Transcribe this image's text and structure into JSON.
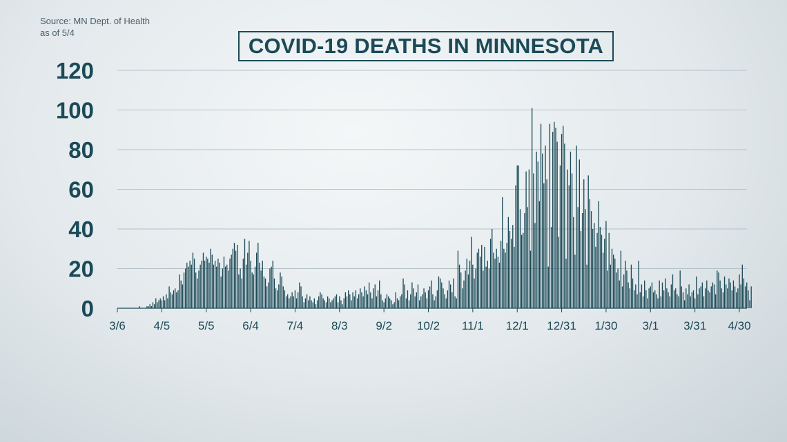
{
  "source": {
    "line1": "Source: MN Dept. of Health",
    "line2": "as of 5/4"
  },
  "title": "COVID-19 DEATHS IN MINNESOTA",
  "colors": {
    "text": "#1b4a57",
    "bar": "#1b4a57",
    "grid": "#b4c1c6"
  },
  "chart_data": {
    "type": "bar",
    "title": "COVID-19 DEATHS IN MINNESOTA",
    "xlabel": "",
    "ylabel": "",
    "ylim": [
      0,
      120
    ],
    "yticks": [
      0,
      20,
      40,
      60,
      80,
      100,
      120
    ],
    "grid": true,
    "x_start": "3/6",
    "x_tick_labels": [
      "3/6",
      "4/5",
      "5/5",
      "6/4",
      "7/4",
      "8/3",
      "9/2",
      "10/2",
      "11/1",
      "12/1",
      "12/31",
      "1/30",
      "3/1",
      "3/31",
      "4/30"
    ],
    "x_tick_days": [
      0,
      30,
      60,
      90,
      120,
      150,
      180,
      210,
      240,
      270,
      300,
      330,
      360,
      390,
      420
    ],
    "series": [
      {
        "values": [
          0,
          0,
          0,
          0,
          0,
          0,
          0,
          0,
          0,
          0,
          0,
          0,
          0,
          0,
          0,
          1,
          0,
          0,
          0,
          0,
          1,
          1,
          2,
          1,
          3,
          2,
          5,
          3,
          4,
          5,
          4,
          6,
          4,
          7,
          5,
          11,
          8,
          7,
          9,
          10,
          8,
          9,
          17,
          14,
          12,
          18,
          20,
          23,
          21,
          24,
          22,
          28,
          25,
          18,
          15,
          19,
          22,
          24,
          28,
          24,
          26,
          25,
          23,
          30,
          27,
          22,
          24,
          21,
          25,
          23,
          16,
          20,
          26,
          21,
          22,
          19,
          25,
          27,
          30,
          33,
          29,
          32,
          17,
          20,
          15,
          25,
          35,
          22,
          28,
          34,
          24,
          18,
          17,
          21,
          28,
          33,
          23,
          19,
          24,
          16,
          15,
          11,
          13,
          20,
          21,
          24,
          15,
          10,
          9,
          12,
          18,
          16,
          11,
          9,
          6,
          7,
          5,
          6,
          8,
          6,
          9,
          5,
          8,
          13,
          11,
          6,
          3,
          5,
          7,
          4,
          6,
          4,
          3,
          5,
          2,
          4,
          6,
          8,
          7,
          5,
          4,
          3,
          6,
          5,
          3,
          4,
          5,
          6,
          7,
          3,
          6,
          4,
          2,
          5,
          8,
          6,
          9,
          7,
          4,
          8,
          6,
          9,
          5,
          7,
          10,
          8,
          6,
          11,
          9,
          7,
          13,
          8,
          5,
          10,
          12,
          6,
          9,
          14,
          7,
          4,
          3,
          5,
          7,
          6,
          5,
          4,
          2,
          3,
          8,
          5,
          4,
          6,
          7,
          15,
          12,
          5,
          9,
          4,
          7,
          13,
          10,
          6,
          8,
          12,
          4,
          6,
          7,
          10,
          8,
          5,
          9,
          11,
          14,
          7,
          4,
          6,
          9,
          16,
          15,
          13,
          10,
          7,
          5,
          9,
          14,
          12,
          8,
          15,
          6,
          5,
          29,
          22,
          18,
          10,
          14,
          19,
          25,
          17,
          24,
          36,
          22,
          15,
          20,
          28,
          30,
          26,
          32,
          19,
          31,
          21,
          24,
          20,
          35,
          40,
          28,
          25,
          30,
          26,
          23,
          34,
          56,
          30,
          28,
          33,
          46,
          39,
          35,
          42,
          31,
          62,
          72,
          72,
          50,
          37,
          38,
          48,
          69,
          51,
          70,
          29,
          101,
          68,
          43,
          79,
          74,
          54,
          93,
          78,
          63,
          82,
          65,
          21,
          93,
          41,
          89,
          94,
          91,
          84,
          36,
          72,
          88,
          92,
          83,
          25,
          70,
          62,
          79,
          68,
          46,
          27,
          82,
          51,
          75,
          39,
          48,
          65,
          50,
          22,
          67,
          55,
          49,
          40,
          43,
          31,
          38,
          54,
          41,
          37,
          28,
          35,
          44,
          19,
          38,
          22,
          30,
          27,
          25,
          18,
          20,
          14,
          29,
          11,
          17,
          24,
          19,
          13,
          10,
          22,
          15,
          9,
          12,
          7,
          24,
          8,
          12,
          6,
          14,
          9,
          5,
          10,
          11,
          13,
          8,
          9,
          7,
          5,
          14,
          6,
          13,
          9,
          15,
          10,
          8,
          6,
          12,
          17,
          9,
          10,
          7,
          6,
          19,
          11,
          8,
          4,
          10,
          7,
          12,
          6,
          8,
          9,
          5,
          16,
          7,
          10,
          11,
          13,
          6,
          10,
          14,
          9,
          8,
          11,
          13,
          12,
          7,
          19,
          18,
          14,
          10,
          8,
          16,
          12,
          10,
          15,
          13,
          9,
          14,
          11,
          8,
          10,
          17,
          12,
          22,
          15,
          11,
          13,
          9,
          4,
          11
        ]
      }
    ]
  }
}
